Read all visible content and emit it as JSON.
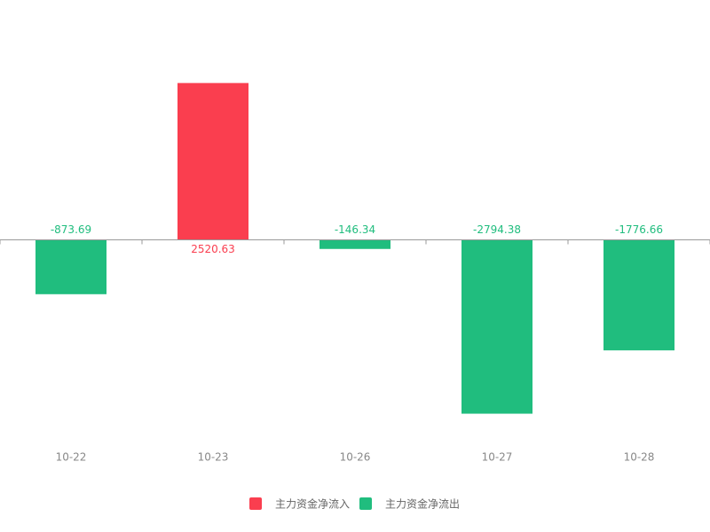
{
  "chart_data": {
    "type": "bar",
    "categories": [
      "10-22",
      "10-23",
      "10-26",
      "10-27",
      "10-28"
    ],
    "series": [
      {
        "name": "主力资金净流入",
        "color": "#fa3e4f",
        "values": [
          null,
          2520.63,
          null,
          null,
          null
        ]
      },
      {
        "name": "主力资金净流出",
        "color": "#20bd7e",
        "values": [
          -873.69,
          null,
          -146.34,
          -2794.38,
          -1776.66
        ]
      }
    ],
    "ylim": [
      -3000,
      3000
    ]
  }
}
